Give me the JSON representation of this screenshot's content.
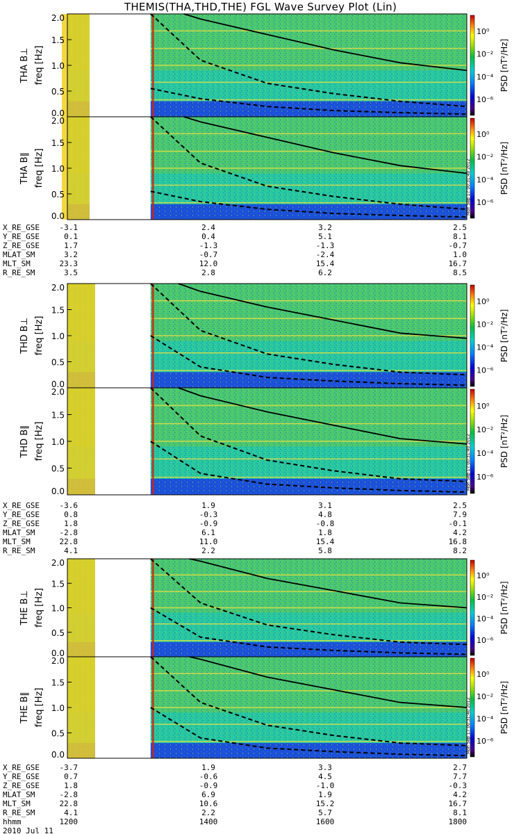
{
  "title": "THEMIS(THA,THD,THE) FGL Wave Survey Plot (Lin)",
  "colorbar": {
    "label": "PSD [nT²/Hz]",
    "tick_labels": [
      "10⁰",
      "10⁻²",
      "10⁻⁴",
      "10⁻⁶"
    ],
    "stamp": "Mon Sep 17 00:31:40 2012"
  },
  "chart_data": [
    {
      "type": "heatmap",
      "probe": "THA",
      "panels": [
        {
          "ylabel": "THA B⊥",
          "unit_label": "freq [Hz]"
        },
        {
          "ylabel": "THA B∥",
          "unit_label": "freq [Hz]"
        }
      ],
      "ylim": [
        0,
        2.0
      ],
      "yticks": [
        "0.0",
        "0.5",
        "1.0",
        "1.5",
        "2.0"
      ],
      "data_gap": {
        "start": "1220",
        "end": "1315"
      },
      "curves": {
        "fce": {
          "x": [
            "1345",
            "1400",
            "1500",
            "1600",
            "1700",
            "1800"
          ],
          "y": [
            2.0,
            1.9,
            1.6,
            1.3,
            1.05,
            0.9
          ]
        },
        "fce_half": {
          "x": [
            "1315",
            "1400",
            "1500",
            "1600",
            "1700",
            "1800"
          ],
          "y": [
            2.0,
            1.1,
            0.65,
            0.45,
            0.3,
            0.2
          ]
        },
        "fce_tenth": {
          "x": [
            "1315",
            "1400",
            "1500",
            "1600",
            "1700",
            "1800"
          ],
          "y": [
            0.55,
            0.35,
            0.2,
            0.12,
            0.08,
            0.05
          ]
        }
      },
      "ephemeris": {
        "rows": [
          {
            "label": "X_RE_GSE",
            "values": [
              "-3.1",
              "2.4",
              "3.2",
              "2.5"
            ]
          },
          {
            "label": "Y_RE_GSE",
            "values": [
              "0.1",
              "0.4",
              "5.1",
              "8.1"
            ]
          },
          {
            "label": "Z_RE_GSE",
            "values": [
              "1.7",
              "-1.3",
              "-1.3",
              "-0.7"
            ]
          },
          {
            "label": "MLAT_SM",
            "values": [
              "3.2",
              "-0.7",
              "-2.4",
              "1.0"
            ]
          },
          {
            "label": "MLT_SM",
            "values": [
              "23.3",
              "12.0",
              "15.4",
              "16.7"
            ]
          },
          {
            "label": "R_RE_SM",
            "values": [
              "3.5",
              "2.8",
              "6.2",
              "8.5"
            ]
          }
        ]
      }
    },
    {
      "type": "heatmap",
      "probe": "THD",
      "panels": [
        {
          "ylabel": "THD B⊥",
          "unit_label": "freq [Hz]"
        },
        {
          "ylabel": "THD B∥",
          "unit_label": "freq [Hz]"
        }
      ],
      "ylim": [
        0,
        2.0
      ],
      "yticks": [
        "0.0",
        "0.5",
        "1.0",
        "1.5",
        "2.0"
      ],
      "data_gap": {
        "start": "1225",
        "end": "1315"
      },
      "curves": {
        "fce": {
          "x": [
            "1340",
            "1400",
            "1500",
            "1600",
            "1700",
            "1800"
          ],
          "y": [
            2.0,
            1.85,
            1.55,
            1.3,
            1.05,
            0.95
          ]
        },
        "fce_half": {
          "x": [
            "1315",
            "1400",
            "1500",
            "1600",
            "1700",
            "1800"
          ],
          "y": [
            2.0,
            1.1,
            0.65,
            0.45,
            0.3,
            0.25
          ]
        },
        "fce_tenth": {
          "x": [
            "1315",
            "1400",
            "1500",
            "1600",
            "1700",
            "1800"
          ],
          "y": [
            1.0,
            0.4,
            0.2,
            0.13,
            0.08,
            0.05
          ]
        }
      },
      "ephemeris": {
        "rows": [
          {
            "label": "X_RE_GSE",
            "values": [
              "-3.6",
              "1.9",
              "3.1",
              "2.5"
            ]
          },
          {
            "label": "Y_RE_GSE",
            "values": [
              "0.8",
              "-0.3",
              "4.8",
              "7.9"
            ]
          },
          {
            "label": "Z_RE_GSE",
            "values": [
              "1.8",
              "-0.9",
              "-0.8",
              "-0.1"
            ]
          },
          {
            "label": "MLAT_SM",
            "values": [
              "-2.8",
              "6.1",
              "1.8",
              "4.2"
            ]
          },
          {
            "label": "MLT_SM",
            "values": [
              "22.8",
              "11.0",
              "15.4",
              "16.8"
            ]
          },
          {
            "label": "R_RE_SM",
            "values": [
              "4.1",
              "2.2",
              "5.8",
              "8.2"
            ]
          }
        ]
      }
    },
    {
      "type": "heatmap",
      "probe": "THE",
      "panels": [
        {
          "ylabel": "THE B⊥",
          "unit_label": "freq [Hz]"
        },
        {
          "ylabel": "THE B∥",
          "unit_label": "freq [Hz]"
        }
      ],
      "ylim": [
        0,
        2.0
      ],
      "yticks": [
        "0.0",
        "0.5",
        "1.0",
        "1.5",
        "2.0"
      ],
      "data_gap": {
        "start": "1225",
        "end": "1315"
      },
      "curves": {
        "fce": {
          "x": [
            "1350",
            "1400",
            "1500",
            "1600",
            "1700",
            "1800"
          ],
          "y": [
            2.0,
            1.95,
            1.6,
            1.35,
            1.1,
            1.0
          ]
        },
        "fce_half": {
          "x": [
            "1315",
            "1400",
            "1500",
            "1600",
            "1700",
            "1800"
          ],
          "y": [
            2.0,
            1.1,
            0.65,
            0.45,
            0.3,
            0.25
          ]
        },
        "fce_tenth": {
          "x": [
            "1315",
            "1400",
            "1500",
            "1600",
            "1700",
            "1800"
          ],
          "y": [
            1.0,
            0.4,
            0.2,
            0.13,
            0.08,
            0.05
          ]
        }
      },
      "ephemeris": {
        "rows": [
          {
            "label": "X_RE_GSE",
            "values": [
              "-3.7",
              "1.9",
              "3.3",
              "2.7"
            ]
          },
          {
            "label": "Y_RE_GSE",
            "values": [
              "0.7",
              "-0.6",
              "4.5",
              "7.7"
            ]
          },
          {
            "label": "Z_RE_GSE",
            "values": [
              "1.8",
              "-0.9",
              "-1.0",
              "-0.3"
            ]
          },
          {
            "label": "MLAT_SM",
            "values": [
              "-2.8",
              "6.9",
              "1.9",
              "4.2"
            ]
          },
          {
            "label": "MLT_SM",
            "values": [
              "22.8",
              "10.6",
              "15.2",
              "16.7"
            ]
          },
          {
            "label": "R_RE_SM",
            "values": [
              "4.1",
              "2.2",
              "5.7",
              "8.1"
            ]
          }
        ],
        "time_row": {
          "label": "hhmm",
          "values": [
            "1200",
            "1400",
            "1600",
            "1800"
          ]
        },
        "date": "2010 Jul 11"
      }
    }
  ]
}
